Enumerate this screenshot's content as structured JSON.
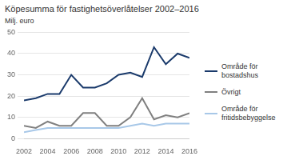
{
  "chart_data": {
    "type": "line",
    "title": "Köpesumma för fastighetsöverlåtelser 2002–2016",
    "ylabel": "Milj. euro",
    "x": [
      2002,
      2003,
      2004,
      2005,
      2006,
      2007,
      2008,
      2009,
      2010,
      2011,
      2012,
      2013,
      2014,
      2015,
      2016
    ],
    "series": [
      {
        "name": "Område för\nbostadshus",
        "color": "#1a3a6b",
        "values": [
          18,
          19,
          21,
          21,
          30,
          24,
          24,
          26,
          30,
          31,
          29,
          43,
          35,
          40,
          38
        ]
      },
      {
        "name": "Övrigt",
        "color": "#808080",
        "values": [
          6,
          5,
          8,
          6,
          6,
          12,
          12,
          6,
          6,
          10,
          19,
          9,
          11,
          10,
          12
        ]
      },
      {
        "name": "Område för\nfritidsbebyggelse",
        "color": "#a8c8e8",
        "values": [
          3,
          4,
          5,
          5,
          5,
          5,
          5,
          5,
          5,
          6,
          7,
          6,
          7,
          7,
          7
        ]
      }
    ],
    "xlim": [
      2002,
      2016
    ],
    "xticks": [
      2002,
      2004,
      2006,
      2008,
      2010,
      2012,
      2014,
      2016
    ],
    "ylim": [
      0,
      50
    ],
    "yticks": [
      0,
      10,
      20,
      30,
      40,
      50
    ],
    "grid": true,
    "legend": "right"
  }
}
